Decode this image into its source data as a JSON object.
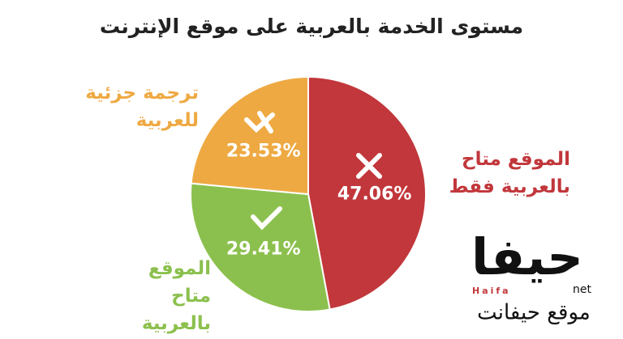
{
  "chart_data": {
    "type": "pie",
    "title": "مستوى الخدمة بالعربية على موقع الإنترنت",
    "categories": [
      "الموقع متاح بالعربية فقط",
      "الموقع متاح بالعربية",
      "ترجمة جزئية للعربية"
    ],
    "values": [
      47.06,
      29.41,
      23.53
    ],
    "value_labels": [
      "47.06%",
      "29.41%",
      "23.53%"
    ],
    "colors": [
      "#c1373b",
      "#8cc04e",
      "#eea942"
    ]
  },
  "logo": {
    "name": "حيفا",
    "suffix": "net",
    "latin": "Haifa",
    "tagline": "موقع حيفانت"
  }
}
